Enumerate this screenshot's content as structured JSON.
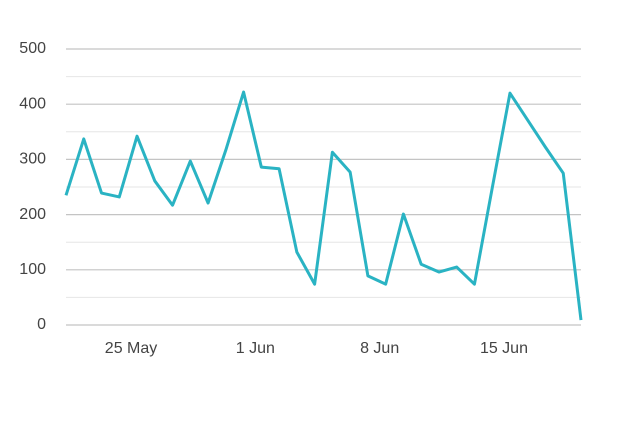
{
  "chart_data": {
    "type": "line",
    "categories": [
      null,
      null,
      null,
      null,
      "25 May",
      null,
      null,
      null,
      null,
      null,
      null,
      "1 Jun",
      null,
      null,
      null,
      null,
      null,
      null,
      "8 Jun",
      null,
      null,
      null,
      null,
      null,
      null,
      "15 Jun",
      null,
      null,
      null,
      null
    ],
    "series": [
      {
        "color": "#2ab3c3",
        "values": [
          235,
          337,
          239,
          232,
          342,
          261,
          217,
          297,
          221,
          317,
          422,
          286,
          283,
          132,
          74,
          313,
          277,
          89,
          74,
          201,
          110,
          96,
          105,
          74,
          248,
          420,
          371,
          322,
          275,
          9
        ]
      }
    ],
    "ylim": [
      0,
      500
    ],
    "yticks": [
      0,
      100,
      200,
      300,
      400,
      500
    ],
    "minor_yticks": [
      50,
      150,
      250,
      350,
      450
    ],
    "grid": true
  }
}
